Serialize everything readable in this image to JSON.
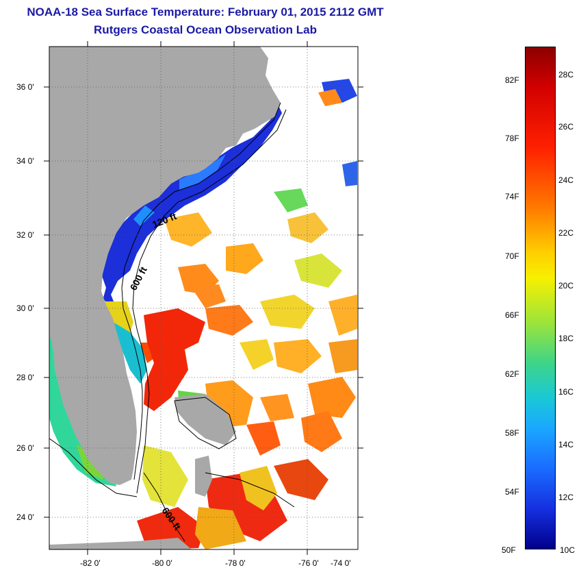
{
  "title": "NOAA-18 Sea Surface Temperature:  February 01, 2015 2112 GMT",
  "subtitle": "Rutgers Coastal Ocean Observation Lab",
  "x_ticks": [
    "-82 0'",
    "-80 0'",
    "-78 0'",
    "-76 0'",
    "-74 0'"
  ],
  "y_ticks": [
    "36 0'",
    "34 0'",
    "32 0'",
    "30 0'",
    "28 0'",
    "26 0'",
    "24 0'"
  ],
  "depth_labels": [
    "120 ft",
    "600 ft",
    "600 ft"
  ],
  "colorbar": {
    "fahrenheit": [
      "82F",
      "78F",
      "74F",
      "70F",
      "66F",
      "62F",
      "58F",
      "54F",
      "50F"
    ],
    "celsius": [
      "28C",
      "26C",
      "24C",
      "22C",
      "20C",
      "18C",
      "16C",
      "14C",
      "12C",
      "10C"
    ],
    "min_c": 10,
    "max_c": 29
  },
  "colors": {
    "land": "#a8a8a8",
    "title": "#1a1aa6",
    "cold": "#00008b",
    "warm": "#8b0000"
  }
}
